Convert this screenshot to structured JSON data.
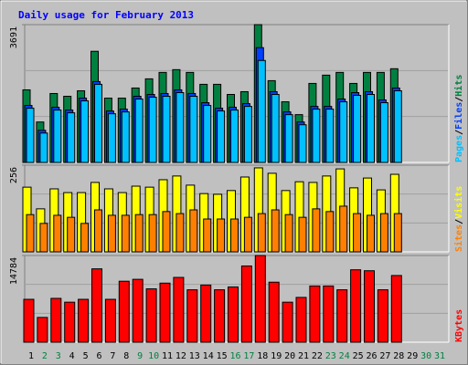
{
  "chart_data": [
    {
      "type": "bar",
      "title": "Daily usage for February 2013",
      "ylim": [
        0,
        3691
      ],
      "yticks": [
        3691
      ],
      "legend_separator": "/",
      "series": [
        {
          "name": "Hits",
          "color": "#008040",
          "values": [
            1944,
            1083,
            1846,
            1772,
            1919,
            2977,
            1722,
            1722,
            1993,
            2239,
            2411,
            2485,
            2411,
            2092,
            2092,
            1821,
            1895,
            3691,
            2190,
            1624,
            1280,
            2116,
            2338,
            2411,
            2116,
            2411,
            2411,
            2510,
            null,
            null,
            null
          ]
        },
        {
          "name": "Files",
          "color": "#0040FF",
          "values": [
            1526,
            861,
            1477,
            1403,
            1723,
            2166,
            1378,
            1427,
            1772,
            1821,
            1846,
            1944,
            1846,
            1600,
            1452,
            1477,
            1575,
            3075,
            1895,
            1354,
            1083,
            1501,
            1501,
            1698,
            1870,
            1895,
            1674,
            1993,
            null,
            null,
            null
          ]
        },
        {
          "name": "Pages",
          "color": "#00C0FF",
          "values": [
            1452,
            787,
            1403,
            1329,
            1649,
            2092,
            1304,
            1353,
            1698,
            1747,
            1772,
            1870,
            1772,
            1526,
            1378,
            1403,
            1501,
            2731,
            1821,
            1280,
            1009,
            1427,
            1427,
            1624,
            1796,
            1821,
            1600,
            1919,
            null,
            null,
            null
          ]
        }
      ]
    },
    {
      "type": "bar",
      "ylim": [
        0,
        256
      ],
      "yticks": [
        256
      ],
      "legend_separator": "/",
      "series": [
        {
          "name": "Visits",
          "color": "#FFFF00",
          "values": [
            191,
            127,
            186,
            175,
            175,
            205,
            186,
            175,
            194,
            191,
            213,
            224,
            197,
            172,
            170,
            181,
            221,
            248,
            232,
            181,
            207,
            205,
            224,
            245,
            189,
            218,
            183,
            229,
            null,
            null,
            null
          ]
        },
        {
          "name": "Sites",
          "color": "#FF8000",
          "values": [
            110,
            84,
            108,
            102,
            84,
            124,
            108,
            108,
            110,
            110,
            119,
            113,
            124,
            97,
            97,
            97,
            102,
            113,
            124,
            110,
            102,
            127,
            119,
            135,
            113,
            108,
            113,
            113,
            null,
            null,
            null
          ]
        }
      ]
    },
    {
      "type": "bar",
      "ylim": [
        0,
        14784
      ],
      "yticks": [
        14784
      ],
      "series": [
        {
          "name": "KBytes",
          "color": "#FF0000",
          "values": [
            7311,
            4224,
            7473,
            6823,
            7311,
            12509,
            7311,
            10397,
            10722,
            9098,
            10073,
            11047,
            8935,
            9748,
            8935,
            9423,
            12997,
            14784,
            10235,
            6823,
            7636,
            9585,
            9585,
            8935,
            12347,
            12185,
            8935,
            11372,
            null,
            null,
            null
          ]
        }
      ],
      "categories": [
        "1",
        "2",
        "3",
        "4",
        "5",
        "6",
        "7",
        "8",
        "9",
        "10",
        "11",
        "12",
        "13",
        "14",
        "15",
        "16",
        "17",
        "18",
        "19",
        "20",
        "21",
        "22",
        "23",
        "24",
        "25",
        "26",
        "27",
        "28",
        "29",
        "30",
        "31"
      ],
      "category_colors": [
        "#000000",
        "#008040",
        "#008040",
        "#000000",
        "#000000",
        "#000000",
        "#000000",
        "#000000",
        "#008040",
        "#008040",
        "#000000",
        "#000000",
        "#000000",
        "#000000",
        "#000000",
        "#008040",
        "#008040",
        "#000000",
        "#000000",
        "#000000",
        "#000000",
        "#000000",
        "#008040",
        "#008040",
        "#000000",
        "#000000",
        "#000000",
        "#000000",
        "#000000",
        "#008040",
        "#008040"
      ]
    }
  ]
}
